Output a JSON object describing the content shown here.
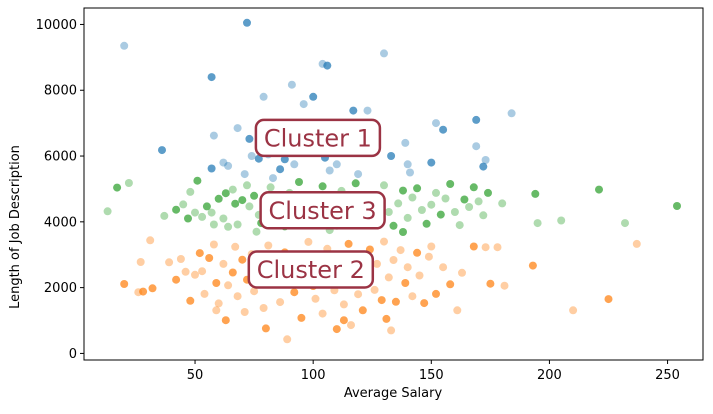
{
  "chart_data": {
    "type": "scatter",
    "title": "",
    "xlabel": "Average Salary",
    "ylabel": "Length of Job Description",
    "xlim": [
      3,
      265
    ],
    "ylim": [
      -200,
      10500
    ],
    "xticks": [
      50,
      100,
      150,
      200,
      250
    ],
    "yticks": [
      0,
      2000,
      4000,
      6000,
      8000,
      10000
    ],
    "grid": false,
    "colors": {
      "blue": "#1f77b4",
      "orange": "#ff7f0e",
      "green": "#2ca02c",
      "annotation": "#9b3344"
    },
    "annotations": [
      {
        "text": "Cluster 1",
        "x": 102,
        "y": 6550
      },
      {
        "text": "Cluster 3",
        "x": 104,
        "y": 4350
      },
      {
        "text": "Cluster 2",
        "x": 99,
        "y": 2550
      }
    ],
    "series": [
      {
        "color": "blue",
        "points": [
          [
            72,
            10050
          ],
          [
            20,
            9350
          ],
          [
            130,
            9120
          ],
          [
            57,
            8400
          ],
          [
            91,
            8170
          ],
          [
            106,
            8750
          ],
          [
            104,
            8800
          ],
          [
            96,
            7580
          ],
          [
            100,
            7800
          ],
          [
            79,
            7800
          ],
          [
            117,
            7380
          ],
          [
            123,
            7380
          ],
          [
            184,
            7300
          ],
          [
            169,
            7100
          ],
          [
            152,
            7000
          ],
          [
            155,
            6800
          ],
          [
            58,
            6620
          ],
          [
            68,
            6850
          ],
          [
            73,
            6520
          ],
          [
            88,
            6450
          ],
          [
            102,
            6350
          ],
          [
            139,
            6400
          ],
          [
            169,
            6300
          ],
          [
            36,
            6180
          ],
          [
            122,
            6300
          ],
          [
            97,
            6450
          ],
          [
            74,
            6000
          ],
          [
            81,
            6050
          ],
          [
            88,
            5900
          ],
          [
            92,
            5750
          ],
          [
            105,
            5950
          ],
          [
            110,
            5750
          ],
          [
            140,
            5750
          ],
          [
            150,
            5800
          ],
          [
            173,
            5880
          ],
          [
            172,
            5680
          ],
          [
            64,
            5700
          ],
          [
            62,
            5800
          ],
          [
            57,
            5620
          ],
          [
            71,
            5450
          ],
          [
            77,
            5920
          ],
          [
            107,
            5560
          ],
          [
            113,
            6150
          ],
          [
            133,
            6000
          ],
          [
            141,
            5500
          ],
          [
            86,
            5600
          ],
          [
            119,
            5450
          ],
          [
            83,
            5330
          ]
        ]
      },
      {
        "color": "green",
        "points": [
          [
            13,
            4320
          ],
          [
            17,
            5040
          ],
          [
            22,
            5180
          ],
          [
            37,
            4180
          ],
          [
            42,
            4370
          ],
          [
            45,
            4530
          ],
          [
            47,
            4100
          ],
          [
            48,
            4910
          ],
          [
            50,
            4280
          ],
          [
            51,
            5250
          ],
          [
            53,
            4150
          ],
          [
            55,
            4470
          ],
          [
            57,
            4280
          ],
          [
            58,
            3920
          ],
          [
            60,
            4700
          ],
          [
            62,
            4100
          ],
          [
            63,
            4870
          ],
          [
            64,
            3850
          ],
          [
            66,
            4980
          ],
          [
            67,
            4550
          ],
          [
            68,
            3920
          ],
          [
            70,
            4660
          ],
          [
            72,
            5110
          ],
          [
            73,
            4470
          ],
          [
            75,
            4790
          ],
          [
            77,
            4210
          ],
          [
            78,
            3960
          ],
          [
            80,
            4560
          ],
          [
            82,
            5050
          ],
          [
            84,
            4200
          ],
          [
            86,
            4650
          ],
          [
            88,
            3860
          ],
          [
            90,
            4880
          ],
          [
            92,
            4330
          ],
          [
            94,
            5210
          ],
          [
            96,
            4120
          ],
          [
            98,
            4730
          ],
          [
            100,
            3960
          ],
          [
            102,
            4420
          ],
          [
            104,
            5080
          ],
          [
            106,
            4280
          ],
          [
            108,
            4600
          ],
          [
            110,
            3880
          ],
          [
            112,
            4940
          ],
          [
            114,
            4180
          ],
          [
            116,
            4530
          ],
          [
            118,
            5170
          ],
          [
            120,
            4350
          ],
          [
            122,
            3970
          ],
          [
            124,
            4800
          ],
          [
            126,
            4230
          ],
          [
            128,
            4620
          ],
          [
            130,
            5110
          ],
          [
            132,
            4300
          ],
          [
            134,
            3880
          ],
          [
            136,
            4560
          ],
          [
            138,
            4950
          ],
          [
            140,
            4120
          ],
          [
            142,
            4740
          ],
          [
            144,
            5020
          ],
          [
            146,
            4360
          ],
          [
            148,
            3940
          ],
          [
            150,
            4520
          ],
          [
            152,
            4880
          ],
          [
            154,
            4220
          ],
          [
            156,
            4710
          ],
          [
            158,
            5150
          ],
          [
            160,
            4300
          ],
          [
            162,
            3900
          ],
          [
            164,
            4680
          ],
          [
            166,
            4450
          ],
          [
            168,
            5050
          ],
          [
            170,
            4620
          ],
          [
            172,
            4200
          ],
          [
            174,
            4880
          ],
          [
            180,
            4560
          ],
          [
            194,
            4850
          ],
          [
            195,
            3960
          ],
          [
            205,
            4040
          ],
          [
            221,
            4980
          ],
          [
            232,
            3960
          ],
          [
            254,
            4480
          ],
          [
            76,
            3700
          ],
          [
            107,
            3750
          ],
          [
            138,
            3690
          ]
        ]
      },
      {
        "color": "orange",
        "points": [
          [
            20,
            2110
          ],
          [
            26,
            1860
          ],
          [
            28,
            1880
          ],
          [
            27,
            2780
          ],
          [
            31,
            3440
          ],
          [
            32,
            1980
          ],
          [
            39,
            2770
          ],
          [
            42,
            2240
          ],
          [
            44,
            2870
          ],
          [
            46,
            2480
          ],
          [
            48,
            1600
          ],
          [
            50,
            2390
          ],
          [
            52,
            3050
          ],
          [
            53,
            2500
          ],
          [
            54,
            1810
          ],
          [
            56,
            2900
          ],
          [
            58,
            3310
          ],
          [
            59,
            2140
          ],
          [
            60,
            1520
          ],
          [
            62,
            2720
          ],
          [
            63,
            1010
          ],
          [
            64,
            2070
          ],
          [
            66,
            2460
          ],
          [
            67,
            3240
          ],
          [
            68,
            1740
          ],
          [
            70,
            2850
          ],
          [
            71,
            1260
          ],
          [
            72,
            2240
          ],
          [
            74,
            3020
          ],
          [
            75,
            1890
          ],
          [
            77,
            2590
          ],
          [
            79,
            1380
          ],
          [
            80,
            760
          ],
          [
            81,
            3280
          ],
          [
            83,
            2120
          ],
          [
            84,
            2740
          ],
          [
            86,
            1560
          ],
          [
            88,
            3070
          ],
          [
            89,
            430
          ],
          [
            90,
            2290
          ],
          [
            92,
            1860
          ],
          [
            94,
            2960
          ],
          [
            95,
            1080
          ],
          [
            97,
            2530
          ],
          [
            98,
            3390
          ],
          [
            100,
            2050
          ],
          [
            101,
            1660
          ],
          [
            103,
            2830
          ],
          [
            104,
            1210
          ],
          [
            106,
            3180
          ],
          [
            107,
            2390
          ],
          [
            109,
            1920
          ],
          [
            110,
            740
          ],
          [
            112,
            2670
          ],
          [
            113,
            1490
          ],
          [
            115,
            3330
          ],
          [
            116,
            860
          ],
          [
            117,
            2210
          ],
          [
            119,
            1800
          ],
          [
            120,
            2990
          ],
          [
            121,
            1310
          ],
          [
            123,
            2510
          ],
          [
            124,
            3160
          ],
          [
            126,
            1930
          ],
          [
            127,
            2720
          ],
          [
            129,
            1620
          ],
          [
            130,
            3400
          ],
          [
            131,
            1050
          ],
          [
            132,
            2310
          ],
          [
            134,
            2840
          ],
          [
            135,
            1570
          ],
          [
            137,
            3140
          ],
          [
            139,
            2140
          ],
          [
            140,
            2620
          ],
          [
            142,
            1740
          ],
          [
            144,
            3060
          ],
          [
            145,
            2370
          ],
          [
            147,
            1530
          ],
          [
            149,
            2940
          ],
          [
            150,
            3250
          ],
          [
            152,
            1810
          ],
          [
            155,
            2620
          ],
          [
            158,
            2100
          ],
          [
            161,
            1310
          ],
          [
            163,
            2450
          ],
          [
            168,
            3250
          ],
          [
            173,
            3230
          ],
          [
            175,
            2120
          ],
          [
            178,
            3230
          ],
          [
            181,
            2060
          ],
          [
            193,
            2670
          ],
          [
            210,
            1310
          ],
          [
            225,
            1650
          ],
          [
            237,
            3330
          ],
          [
            133,
            700
          ],
          [
            113,
            1010
          ],
          [
            59,
            1310
          ]
        ]
      }
    ]
  }
}
